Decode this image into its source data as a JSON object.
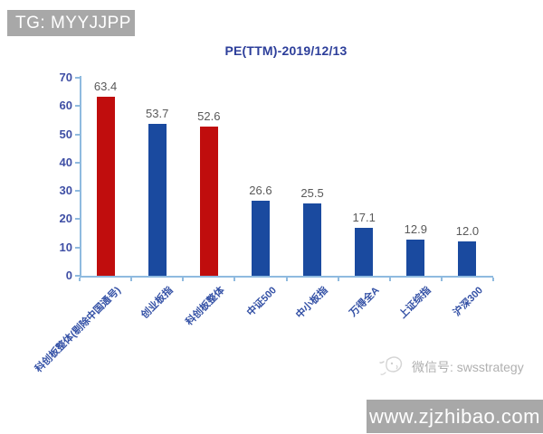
{
  "banner_top": {
    "text": "TG: MYYJJPP"
  },
  "watermark": {
    "wechat_label": "微信号: swsstrategy"
  },
  "banner_bottom": {
    "text": "www.zjzhibao.com"
  },
  "colors": {
    "bar_red": "#c00d0d",
    "bar_blue": "#1a4a9f",
    "axis_line": "#8fbadf",
    "tick_label": "#3f4fa5",
    "category_label": "#3350a5",
    "title": "#2c3e9a",
    "value_label": "#595959",
    "banner_gray": "#a8a8a8"
  },
  "chart_data": {
    "type": "bar",
    "title": "PE(TTM)-2019/12/13",
    "categories": [
      "科创板整体(剔除中国通号)",
      "创业板指",
      "科创板整体",
      "中证500",
      "中小板指",
      "万得全A",
      "上证综指",
      "沪深300"
    ],
    "values": [
      63.4,
      53.7,
      52.6,
      26.6,
      25.5,
      17.1,
      12.9,
      12.0
    ],
    "bar_colors": [
      "#c00d0d",
      "#1a4a9f",
      "#c00d0d",
      "#1a4a9f",
      "#1a4a9f",
      "#1a4a9f",
      "#1a4a9f",
      "#1a4a9f"
    ],
    "xlabel": "",
    "ylabel": "",
    "ylim": [
      0,
      70
    ],
    "yticks": [
      0,
      10,
      20,
      30,
      40,
      50,
      60,
      70
    ],
    "grid": false,
    "legend": "none",
    "value_labels_shown": true,
    "category_label_rotation_deg": -45
  }
}
